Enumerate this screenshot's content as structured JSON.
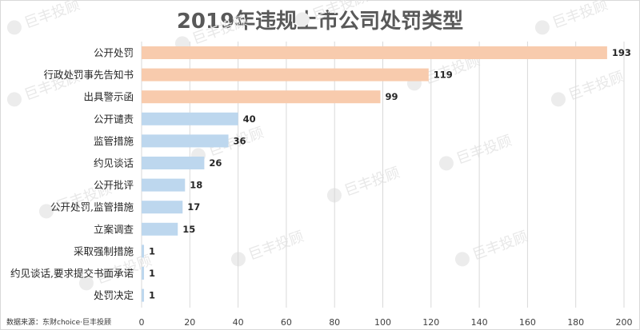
{
  "chart_data": {
    "type": "bar",
    "orientation": "horizontal",
    "title": "2019年违规上市公司处罚类型",
    "xlabel": "",
    "ylabel": "",
    "xlim": [
      0,
      200
    ],
    "x_ticks": [
      0,
      20,
      40,
      60,
      80,
      100,
      120,
      140,
      160,
      180,
      200
    ],
    "grid": "vertical",
    "categories": [
      "公开处罚",
      "行政处罚事先告知书",
      "出具警示函",
      "公开谴责",
      "监管措施",
      "约见谈话",
      "公开批评",
      "公开处罚,监管措施",
      "立案调查",
      "采取强制措施",
      "约见谈话,要求提交书面承诺",
      "处罚决定"
    ],
    "values": [
      193,
      119,
      99,
      40,
      36,
      26,
      18,
      17,
      15,
      1,
      1,
      1
    ],
    "highlight_count": 3,
    "colors": {
      "highlight": "#f8cbad",
      "normal": "#bdd7ee"
    },
    "data_labels": true,
    "source": "数据来源：东财choice·巨丰投顾",
    "watermark": "巨丰投顾"
  }
}
